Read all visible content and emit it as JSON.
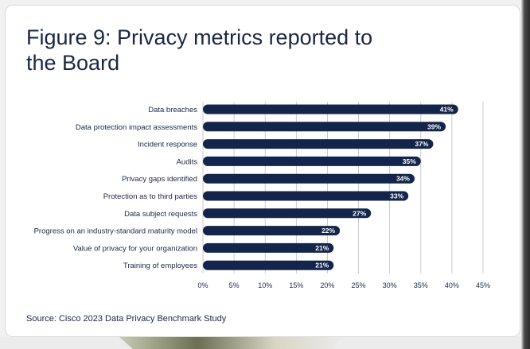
{
  "title": "Figure 9: Privacy metrics reported to the Board",
  "source": "Source: Cisco 2023 Data Privacy Benchmark Study",
  "colors": {
    "bar": "#13254a",
    "grid": "#bfbfbf",
    "text": "#1a2744"
  },
  "chart_data": {
    "type": "bar",
    "orientation": "horizontal",
    "title": "Figure 9: Privacy metrics reported to the Board",
    "xlabel": "",
    "ylabel": "",
    "xlim": [
      0,
      45
    ],
    "grid": true,
    "categories": [
      "Data breaches",
      "Data protection impact assessments",
      "Incident response",
      "Audits",
      "Privacy gaps identified",
      "Protection as to third parties",
      "Data subject requests",
      "Progress on an industry-standard maturity model",
      "Value of privacy for your organization",
      "Training of employees"
    ],
    "values": [
      41,
      39,
      37,
      35,
      34,
      33,
      27,
      22,
      21,
      21
    ],
    "value_labels": [
      "41%",
      "39%",
      "37%",
      "35%",
      "34%",
      "33%",
      "27%",
      "22%",
      "21%",
      "21%"
    ],
    "ticks": [
      0,
      5,
      10,
      15,
      20,
      25,
      30,
      35,
      40,
      45
    ],
    "tick_labels": [
      "0%",
      "5%",
      "10%",
      "15%",
      "20%",
      "25%",
      "30%",
      "35%",
      "40%",
      "45%"
    ]
  }
}
